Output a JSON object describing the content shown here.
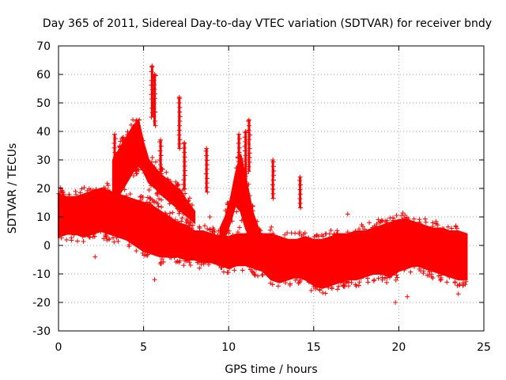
{
  "chart_data": {
    "type": "scatter",
    "title": "Day 365 of 2011, Sidereal Day-to-day VTEC variation (SDTVAR) for receiver bndy",
    "xlabel": "GPS time / hours",
    "ylabel": "SDTVAR / TECUs",
    "xlim": [
      0,
      25
    ],
    "ylim": [
      -30,
      70
    ],
    "xticks": [
      0,
      5,
      10,
      15,
      20,
      25
    ],
    "yticks": [
      -30,
      -20,
      -10,
      0,
      10,
      20,
      30,
      40,
      50,
      60,
      70
    ],
    "grid": true,
    "marker": "+",
    "color": "#ff0000",
    "bands": [
      {
        "name": "main-band",
        "x": [
          0,
          0.5,
          1,
          1.5,
          2,
          2.5,
          3,
          3.5,
          4,
          4.5,
          5,
          5.5,
          6,
          6.5,
          7,
          7.5,
          8,
          8.5,
          9,
          9.5,
          10,
          10.5,
          11,
          11.5,
          12,
          12.5,
          13,
          13.5,
          14,
          14.5,
          15,
          15.5,
          16,
          16.5,
          17,
          17.5,
          18,
          18.5,
          19,
          19.5,
          20,
          20.5,
          21,
          21.5,
          22,
          22.5,
          23,
          23.5,
          24
        ],
        "low": [
          3,
          4,
          4,
          3,
          4,
          5,
          4,
          3,
          2,
          0,
          -2,
          -3,
          -4,
          -4,
          -4,
          -5,
          -5,
          -6,
          -6,
          -7,
          -8,
          -7,
          -7,
          -8,
          -9,
          -12,
          -13,
          -12,
          -11,
          -12,
          -14,
          -15,
          -14,
          -13,
          -12,
          -12,
          -11,
          -10,
          -10,
          -11,
          -9,
          -8,
          -7,
          -8,
          -9,
          -10,
          -11,
          -12,
          -12
        ],
        "high": [
          18,
          17,
          17,
          18,
          19,
          20,
          19,
          18,
          17,
          16,
          15,
          14,
          12,
          10,
          8,
          7,
          5,
          5,
          4,
          3,
          3,
          4,
          4,
          5,
          4,
          4,
          3,
          2,
          2,
          3,
          2,
          2,
          3,
          4,
          4,
          5,
          5,
          6,
          7,
          8,
          9,
          9,
          8,
          7,
          6,
          6,
          5,
          5,
          4
        ]
      },
      {
        "name": "ridge-band",
        "x": [
          3.2,
          3.6,
          4,
          4.4,
          4.7,
          5,
          5.3,
          5.7,
          6,
          6.4,
          6.8,
          7.2,
          7.6,
          8
        ],
        "low": [
          16,
          18,
          22,
          26,
          28,
          26,
          22,
          20,
          18,
          16,
          14,
          12,
          10,
          8
        ],
        "high": [
          30,
          34,
          38,
          42,
          44,
          36,
          30,
          27,
          25,
          23,
          21,
          19,
          15,
          12
        ]
      },
      {
        "name": "rise-band",
        "x": [
          9.5,
          9.8,
          10.1,
          10.4,
          10.7,
          11,
          11.4,
          11.8
        ],
        "low": [
          0,
          3,
          8,
          14,
          12,
          6,
          1,
          -2
        ],
        "high": [
          6,
          10,
          16,
          25,
          32,
          24,
          12,
          5
        ]
      }
    ],
    "spikes": [
      {
        "x": 3.3,
        "ymax": 39
      },
      {
        "x": 3.8,
        "ymax": 38
      },
      {
        "x": 4.6,
        "ymax": 44
      },
      {
        "x": 5.5,
        "ymax": 63
      },
      {
        "x": 5.65,
        "ymax": 60
      },
      {
        "x": 6.0,
        "ymax": 37
      },
      {
        "x": 7.1,
        "ymax": 52
      },
      {
        "x": 7.4,
        "ymax": 36
      },
      {
        "x": 8.7,
        "ymax": 34
      },
      {
        "x": 10.6,
        "ymax": 39
      },
      {
        "x": 11.0,
        "ymax": 40
      },
      {
        "x": 11.2,
        "ymax": 44
      },
      {
        "x": 12.6,
        "ymax": 30
      },
      {
        "x": 14.2,
        "ymax": 24
      },
      {
        "x": 16.2,
        "ymax": 4
      }
    ],
    "outliers": [
      {
        "x": 2.15,
        "y": -4
      },
      {
        "x": 5.65,
        "y": -12
      },
      {
        "x": 19.8,
        "y": -20
      },
      {
        "x": 20.5,
        "y": -18
      },
      {
        "x": 23.5,
        "y": -17
      },
      {
        "x": 20.2,
        "y": 9
      },
      {
        "x": 17.0,
        "y": 11
      },
      {
        "x": 8.9,
        "y": 10
      }
    ]
  }
}
